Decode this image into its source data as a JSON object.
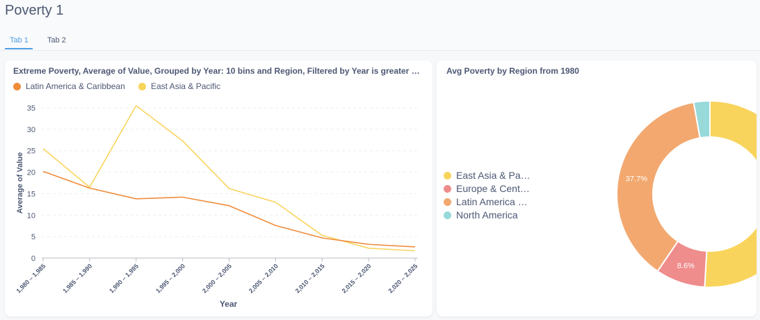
{
  "page": {
    "title": "Poverty 1"
  },
  "tabs": [
    {
      "label": "Tab 1",
      "active": true
    },
    {
      "label": "Tab 2",
      "active": false
    }
  ],
  "line_card": {
    "title": "Extreme Poverty, Average of Value, Grouped by Year: 10 bins and Region, Filtered by Year is greater …",
    "legend": [
      {
        "label": "Latin America & Caribbean",
        "color": "#ef8c3b"
      },
      {
        "label": "East Asia & Pacific",
        "color": "#f9d45c"
      }
    ]
  },
  "pie_card": {
    "title": "Avg Poverty by Region from 1980",
    "legend": [
      {
        "label": "East Asia & Pa…",
        "color": "#f9d45c"
      },
      {
        "label": "Europe & Cent…",
        "color": "#ef8c8c"
      },
      {
        "label": "Latin America …",
        "color": "#f2a86f"
      },
      {
        "label": "North America",
        "color": "#98d9d9"
      }
    ]
  },
  "chart_data": [
    {
      "type": "line",
      "title": "Extreme Poverty, Average of Value, Grouped by Year: 10 bins and Region, Filtered by Year is greater …",
      "xlabel": "Year",
      "ylabel": "Average of Value",
      "categories": [
        "1,980 – 1,985",
        "1,985 – 1,990",
        "1,990 – 1,995",
        "1,995 – 2,000",
        "2,000 – 2,005",
        "2,005 – 2,010",
        "2,010 – 2,015",
        "2,015 – 2,020",
        "2,020 – 2,025"
      ],
      "series": [
        {
          "name": "Latin America & Caribbean",
          "color": "#ef8c3b",
          "values": [
            20.2,
            16.3,
            13.8,
            14.2,
            12.2,
            7.6,
            4.7,
            3.2,
            2.6
          ]
        },
        {
          "name": "East Asia & Pacific",
          "color": "#f9d45c",
          "values": [
            25.5,
            16.5,
            35.5,
            27.3,
            16.2,
            13.0,
            5.3,
            2.3,
            1.7
          ]
        }
      ],
      "ylim": [
        0,
        35
      ],
      "yticks": [
        0,
        5,
        10,
        15,
        20,
        25,
        30,
        35
      ],
      "grid": true,
      "legend": "top-left"
    },
    {
      "type": "pie",
      "title": "Avg Poverty by Region from 1980",
      "slices": [
        {
          "name": "East Asia & Pa…",
          "value": 50.9,
          "label": "50.9%",
          "color": "#f9d45c"
        },
        {
          "name": "Europe & Cent…",
          "value": 8.6,
          "label": "8.6%",
          "color": "#ef8c8c"
        },
        {
          "name": "Latin America …",
          "value": 37.7,
          "label": "37.7%",
          "color": "#f2a86f"
        },
        {
          "name": "North America",
          "value": 2.8,
          "label": "",
          "color": "#98d9d9"
        }
      ],
      "donut": true,
      "legend": "left"
    }
  ]
}
